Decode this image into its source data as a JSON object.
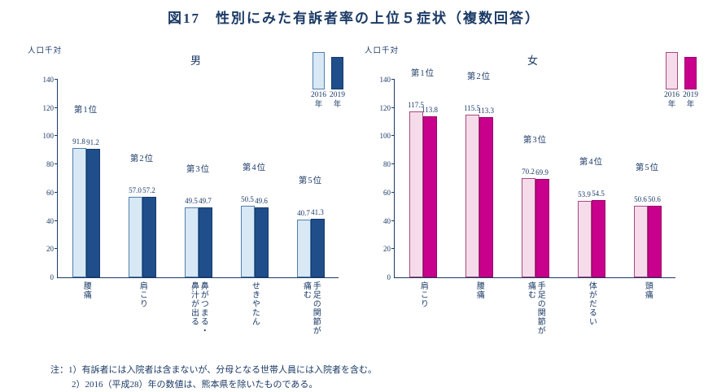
{
  "title": "図17　性別にみた有訴者率の上位５症状（複数回答）",
  "legend": {
    "years": [
      "2016",
      "2019"
    ],
    "suffix": "年"
  },
  "notes": [
    "注：1）有訴者には入院者は含まないが、分母となる世帯人員には入院者を含む。",
    "2）2016（平成28）年の数値は、熊本県を除いたものである。"
  ],
  "text_color": "#1b3a66",
  "chart_data": [
    {
      "type": "bar",
      "title": "男",
      "ylabel": "人口千対",
      "ylim": [
        0,
        140
      ],
      "yticks": [
        0,
        20,
        40,
        60,
        80,
        100,
        120,
        140
      ],
      "legend": [
        "2016年",
        "2019年"
      ],
      "legend_position": "top-right",
      "grid": false,
      "ranks": [
        "第1位",
        "第2位",
        "第3位",
        "第4位",
        "第5位"
      ],
      "categories": [
        "腰痛",
        "肩こり",
        "鼻がつまる・鼻汁が出る",
        "せきやたん",
        "手足の関節が痛む"
      ],
      "series": [
        {
          "name": "2016年",
          "values": [
            91.8,
            57.0,
            49.5,
            50.5,
            40.7
          ],
          "color": "#d8e8f5",
          "border": "#4f7fae"
        },
        {
          "name": "2019年",
          "values": [
            91.2,
            57.2,
            49.7,
            49.6,
            41.3
          ],
          "color": "#1f4e8b",
          "border": "#163a6b"
        }
      ]
    },
    {
      "type": "bar",
      "title": "女",
      "ylabel": "人口千対",
      "ylim": [
        0,
        140
      ],
      "yticks": [
        0,
        20,
        40,
        60,
        80,
        100,
        120,
        140
      ],
      "legend": [
        "2016年",
        "2019年"
      ],
      "legend_position": "top-right",
      "grid": false,
      "ranks": [
        "第1位",
        "第2位",
        "第3位",
        "第4位",
        "第5位"
      ],
      "categories": [
        "肩こり",
        "腰痛",
        "手足の関節が痛む",
        "体がだるい",
        "頭痛"
      ],
      "series": [
        {
          "name": "2016年",
          "values": [
            117.5,
            115.5,
            70.2,
            53.9,
            50.6
          ],
          "color": "#f6dcea",
          "border": "#a8487f"
        },
        {
          "name": "2019年",
          "values": [
            113.8,
            113.3,
            69.9,
            54.5,
            50.6
          ],
          "color": "#c9008c",
          "border": "#9c006c"
        }
      ]
    }
  ]
}
